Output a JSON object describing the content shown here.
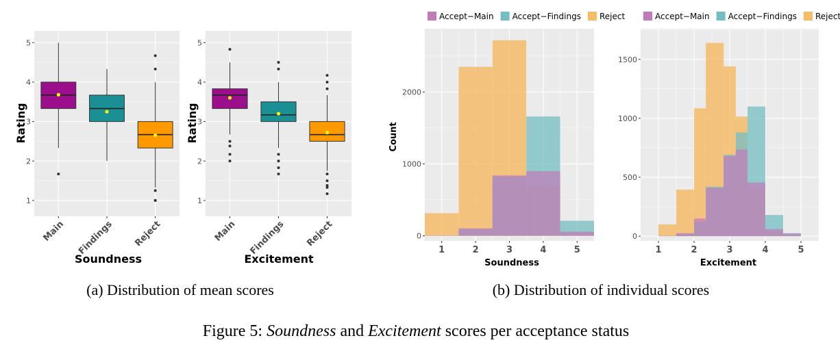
{
  "colors": {
    "main": "#9b0f8c",
    "findings": "#1a8f94",
    "reject": "#ff9900",
    "hist_main": "#c27ab9",
    "hist_findings": "#74bec3",
    "hist_reject": "#f5bc6a",
    "panel_bg": "#ebebeb",
    "mean_dot": "#ffff00"
  },
  "subcaptions": {
    "a": "(a) Distribution of mean scores",
    "b": "(b) Distribution of individual scores"
  },
  "caption": {
    "prefix": "Figure 5: ",
    "term1": "Soundness",
    "middle": " and ",
    "term2": "Excitement",
    "suffix": " scores per acceptance status"
  },
  "chart_data": [
    {
      "type": "box",
      "xlabel": "Soundness",
      "ylabel": "Rating",
      "ylim": [
        0.6,
        5.3
      ],
      "yticks": [
        "1",
        "2",
        "3",
        "4",
        "5"
      ],
      "categories": [
        "Main",
        "Findings",
        "Reject"
      ],
      "boxes": [
        {
          "name": "Main",
          "min": 2.33,
          "q1": 3.33,
          "median": 3.67,
          "q3": 4.0,
          "max": 5.0,
          "mean": 3.68,
          "outliers": [
            1.67
          ]
        },
        {
          "name": "Findings",
          "min": 2.0,
          "q1": 3.0,
          "median": 3.33,
          "q3": 3.67,
          "max": 4.33,
          "mean": 3.25,
          "outliers": []
        },
        {
          "name": "Reject",
          "min": 1.33,
          "q1": 2.33,
          "median": 2.67,
          "q3": 3.0,
          "max": 4.0,
          "mean": 2.65,
          "outliers": [
            1.0,
            1.0,
            1.25,
            4.33,
            4.67
          ]
        }
      ]
    },
    {
      "type": "box",
      "xlabel": "Excitement",
      "ylabel": "Rating",
      "ylim": [
        0.6,
        5.3
      ],
      "yticks": [
        "1",
        "2",
        "3",
        "4",
        "5"
      ],
      "categories": [
        "Main",
        "Findings",
        "Reject"
      ],
      "boxes": [
        {
          "name": "Main",
          "min": 2.67,
          "q1": 3.33,
          "median": 3.67,
          "q3": 3.83,
          "max": 4.5,
          "mean": 3.6,
          "outliers": [
            2.0,
            2.17,
            2.38,
            2.5,
            4.83
          ]
        },
        {
          "name": "Findings",
          "min": 2.33,
          "q1": 3.0,
          "median": 3.17,
          "q3": 3.5,
          "max": 4.0,
          "mean": 3.2,
          "outliers": [
            1.67,
            1.83,
            2.0,
            2.17,
            4.33,
            4.5
          ]
        },
        {
          "name": "Reject",
          "min": 1.75,
          "q1": 2.5,
          "median": 2.67,
          "q3": 3.0,
          "max": 3.67,
          "mean": 2.72,
          "outliers": [
            1.17,
            1.33,
            1.38,
            1.5,
            1.67,
            3.83,
            4.0,
            4.17
          ]
        }
      ]
    },
    {
      "type": "histogram",
      "xlabel": "Soundness",
      "ylabel": "Count",
      "xlim": [
        0.5,
        5.5
      ],
      "ylim": [
        -70,
        2880
      ],
      "xticks": [
        "1",
        "2",
        "3",
        "4",
        "5"
      ],
      "yticks": [
        {
          "v": 0,
          "l": "0"
        },
        {
          "v": 1000,
          "l": "1000"
        },
        {
          "v": 2000,
          "l": "2000"
        }
      ],
      "legend": [
        "Accept−Main",
        "Accept−Findings",
        "Reject"
      ],
      "bin_edges": [
        0.5,
        1.5,
        2.5,
        3.5,
        4.5,
        5.5
      ],
      "series": [
        {
          "name": "Accept−Main",
          "values": [
            3,
            105,
            840,
            900,
            55
          ]
        },
        {
          "name": "Accept−Findings",
          "values": [
            3,
            95,
            830,
            1660,
            210
          ]
        },
        {
          "name": "Reject",
          "values": [
            315,
            2350,
            2720,
            700,
            60
          ]
        }
      ]
    },
    {
      "type": "histogram",
      "xlabel": "Excitement",
      "ylabel": "",
      "xlim": [
        0.5,
        5.5
      ],
      "ylim": [
        -40,
        1760
      ],
      "xticks": [
        "1",
        "2",
        "3",
        "4",
        "5"
      ],
      "yticks": [
        {
          "v": 0,
          "l": "0"
        },
        {
          "v": 500,
          "l": "500"
        },
        {
          "v": 1000,
          "l": "1000"
        },
        {
          "v": 1500,
          "l": "1500"
        }
      ],
      "legend": [
        "Accept−Main",
        "Accept−Findings",
        "Reject"
      ],
      "bin_edges": [
        1.0,
        1.5,
        2.0,
        2.33,
        2.83,
        3.17,
        3.5,
        4.0,
        4.5,
        5.0
      ],
      "series": [
        {
          "name": "Accept−Main",
          "values": [
            2,
            25,
            150,
            410,
            680,
            735,
            455,
            60,
            22
          ]
        },
        {
          "name": "Accept−Findings",
          "values": [
            2,
            20,
            125,
            420,
            690,
            880,
            1100,
            180,
            25
          ]
        },
        {
          "name": "Reject",
          "values": [
            100,
            395,
            1085,
            1640,
            1440,
            1015,
            400,
            40,
            3
          ]
        }
      ]
    }
  ]
}
